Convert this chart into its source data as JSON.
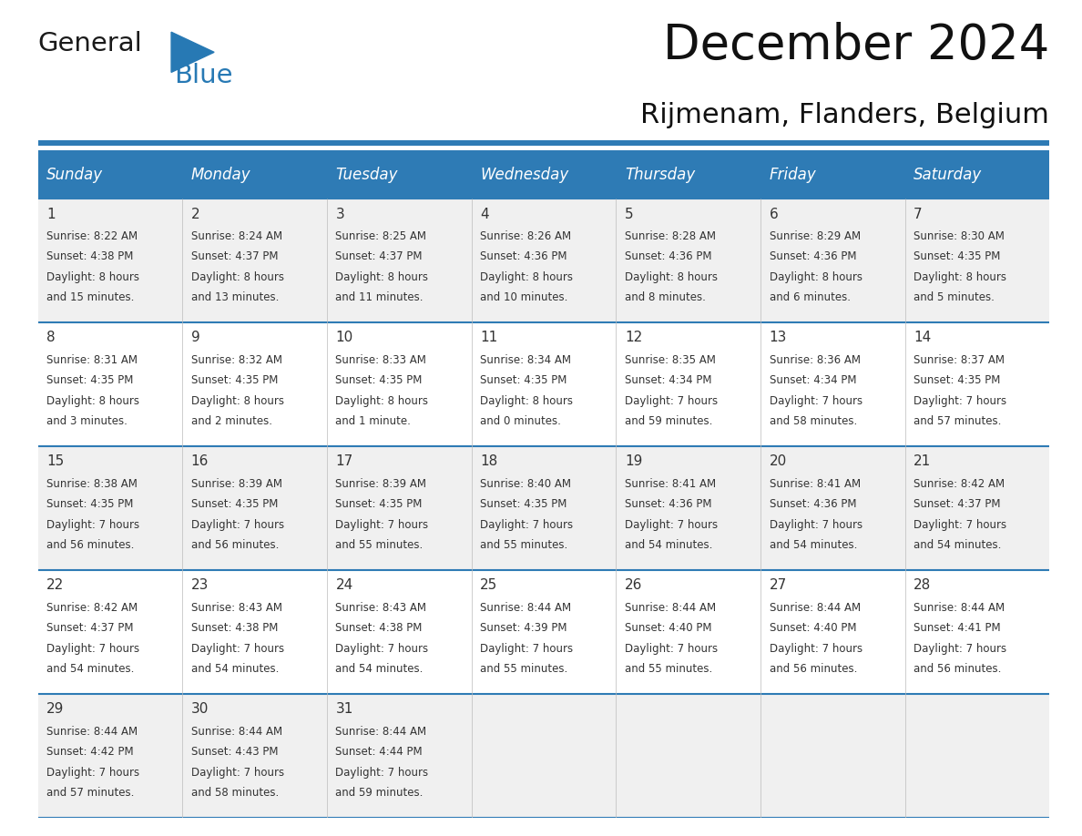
{
  "title": "December 2024",
  "subtitle": "Rijmenam, Flanders, Belgium",
  "header_bg_color": "#2E7BB5",
  "header_text_color": "#FFFFFF",
  "weekdays": [
    "Sunday",
    "Monday",
    "Tuesday",
    "Wednesday",
    "Thursday",
    "Friday",
    "Saturday"
  ],
  "row_bg_even": "#F0F0F0",
  "row_bg_odd": "#FFFFFF",
  "cell_text_color": "#333333",
  "grid_line_color": "#2E7BB5",
  "days": [
    {
      "day": 1,
      "col": 0,
      "row": 0,
      "sunrise": "8:22 AM",
      "sunset": "4:38 PM",
      "daylight_h": "8 hours",
      "daylight_m": "and 15 minutes."
    },
    {
      "day": 2,
      "col": 1,
      "row": 0,
      "sunrise": "8:24 AM",
      "sunset": "4:37 PM",
      "daylight_h": "8 hours",
      "daylight_m": "and 13 minutes."
    },
    {
      "day": 3,
      "col": 2,
      "row": 0,
      "sunrise": "8:25 AM",
      "sunset": "4:37 PM",
      "daylight_h": "8 hours",
      "daylight_m": "and 11 minutes."
    },
    {
      "day": 4,
      "col": 3,
      "row": 0,
      "sunrise": "8:26 AM",
      "sunset": "4:36 PM",
      "daylight_h": "8 hours",
      "daylight_m": "and 10 minutes."
    },
    {
      "day": 5,
      "col": 4,
      "row": 0,
      "sunrise": "8:28 AM",
      "sunset": "4:36 PM",
      "daylight_h": "8 hours",
      "daylight_m": "and 8 minutes."
    },
    {
      "day": 6,
      "col": 5,
      "row": 0,
      "sunrise": "8:29 AM",
      "sunset": "4:36 PM",
      "daylight_h": "8 hours",
      "daylight_m": "and 6 minutes."
    },
    {
      "day": 7,
      "col": 6,
      "row": 0,
      "sunrise": "8:30 AM",
      "sunset": "4:35 PM",
      "daylight_h": "8 hours",
      "daylight_m": "and 5 minutes."
    },
    {
      "day": 8,
      "col": 0,
      "row": 1,
      "sunrise": "8:31 AM",
      "sunset": "4:35 PM",
      "daylight_h": "8 hours",
      "daylight_m": "and 3 minutes."
    },
    {
      "day": 9,
      "col": 1,
      "row": 1,
      "sunrise": "8:32 AM",
      "sunset": "4:35 PM",
      "daylight_h": "8 hours",
      "daylight_m": "and 2 minutes."
    },
    {
      "day": 10,
      "col": 2,
      "row": 1,
      "sunrise": "8:33 AM",
      "sunset": "4:35 PM",
      "daylight_h": "8 hours",
      "daylight_m": "and 1 minute."
    },
    {
      "day": 11,
      "col": 3,
      "row": 1,
      "sunrise": "8:34 AM",
      "sunset": "4:35 PM",
      "daylight_h": "8 hours",
      "daylight_m": "and 0 minutes."
    },
    {
      "day": 12,
      "col": 4,
      "row": 1,
      "sunrise": "8:35 AM",
      "sunset": "4:34 PM",
      "daylight_h": "7 hours",
      "daylight_m": "and 59 minutes."
    },
    {
      "day": 13,
      "col": 5,
      "row": 1,
      "sunrise": "8:36 AM",
      "sunset": "4:34 PM",
      "daylight_h": "7 hours",
      "daylight_m": "and 58 minutes."
    },
    {
      "day": 14,
      "col": 6,
      "row": 1,
      "sunrise": "8:37 AM",
      "sunset": "4:35 PM",
      "daylight_h": "7 hours",
      "daylight_m": "and 57 minutes."
    },
    {
      "day": 15,
      "col": 0,
      "row": 2,
      "sunrise": "8:38 AM",
      "sunset": "4:35 PM",
      "daylight_h": "7 hours",
      "daylight_m": "and 56 minutes."
    },
    {
      "day": 16,
      "col": 1,
      "row": 2,
      "sunrise": "8:39 AM",
      "sunset": "4:35 PM",
      "daylight_h": "7 hours",
      "daylight_m": "and 56 minutes."
    },
    {
      "day": 17,
      "col": 2,
      "row": 2,
      "sunrise": "8:39 AM",
      "sunset": "4:35 PM",
      "daylight_h": "7 hours",
      "daylight_m": "and 55 minutes."
    },
    {
      "day": 18,
      "col": 3,
      "row": 2,
      "sunrise": "8:40 AM",
      "sunset": "4:35 PM",
      "daylight_h": "7 hours",
      "daylight_m": "and 55 minutes."
    },
    {
      "day": 19,
      "col": 4,
      "row": 2,
      "sunrise": "8:41 AM",
      "sunset": "4:36 PM",
      "daylight_h": "7 hours",
      "daylight_m": "and 54 minutes."
    },
    {
      "day": 20,
      "col": 5,
      "row": 2,
      "sunrise": "8:41 AM",
      "sunset": "4:36 PM",
      "daylight_h": "7 hours",
      "daylight_m": "and 54 minutes."
    },
    {
      "day": 21,
      "col": 6,
      "row": 2,
      "sunrise": "8:42 AM",
      "sunset": "4:37 PM",
      "daylight_h": "7 hours",
      "daylight_m": "and 54 minutes."
    },
    {
      "day": 22,
      "col": 0,
      "row": 3,
      "sunrise": "8:42 AM",
      "sunset": "4:37 PM",
      "daylight_h": "7 hours",
      "daylight_m": "and 54 minutes."
    },
    {
      "day": 23,
      "col": 1,
      "row": 3,
      "sunrise": "8:43 AM",
      "sunset": "4:38 PM",
      "daylight_h": "7 hours",
      "daylight_m": "and 54 minutes."
    },
    {
      "day": 24,
      "col": 2,
      "row": 3,
      "sunrise": "8:43 AM",
      "sunset": "4:38 PM",
      "daylight_h": "7 hours",
      "daylight_m": "and 54 minutes."
    },
    {
      "day": 25,
      "col": 3,
      "row": 3,
      "sunrise": "8:44 AM",
      "sunset": "4:39 PM",
      "daylight_h": "7 hours",
      "daylight_m": "and 55 minutes."
    },
    {
      "day": 26,
      "col": 4,
      "row": 3,
      "sunrise": "8:44 AM",
      "sunset": "4:40 PM",
      "daylight_h": "7 hours",
      "daylight_m": "and 55 minutes."
    },
    {
      "day": 27,
      "col": 5,
      "row": 3,
      "sunrise": "8:44 AM",
      "sunset": "4:40 PM",
      "daylight_h": "7 hours",
      "daylight_m": "and 56 minutes."
    },
    {
      "day": 28,
      "col": 6,
      "row": 3,
      "sunrise": "8:44 AM",
      "sunset": "4:41 PM",
      "daylight_h": "7 hours",
      "daylight_m": "and 56 minutes."
    },
    {
      "day": 29,
      "col": 0,
      "row": 4,
      "sunrise": "8:44 AM",
      "sunset": "4:42 PM",
      "daylight_h": "7 hours",
      "daylight_m": "and 57 minutes."
    },
    {
      "day": 30,
      "col": 1,
      "row": 4,
      "sunrise": "8:44 AM",
      "sunset": "4:43 PM",
      "daylight_h": "7 hours",
      "daylight_m": "and 58 minutes."
    },
    {
      "day": 31,
      "col": 2,
      "row": 4,
      "sunrise": "8:44 AM",
      "sunset": "4:44 PM",
      "daylight_h": "7 hours",
      "daylight_m": "and 59 minutes."
    }
  ],
  "logo_general_color": "#1a1a1a",
  "logo_blue_color": "#2779B4",
  "bg_color": "#FFFFFF",
  "separator_line_color": "#2E7BB5",
  "title_fontsize": 38,
  "subtitle_fontsize": 22,
  "header_fontsize": 12,
  "day_num_fontsize": 11,
  "cell_fontsize": 8.5
}
